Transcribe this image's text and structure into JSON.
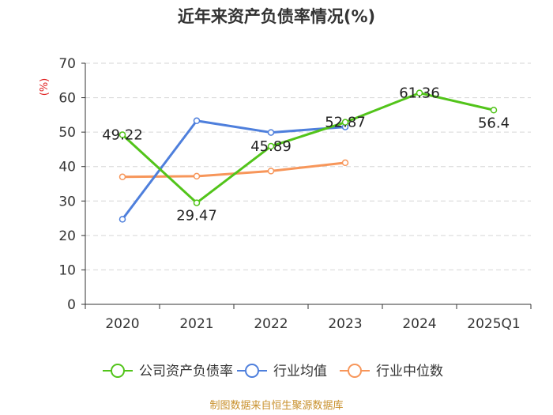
{
  "chart_data": {
    "type": "line",
    "title": "近年来资产负债率情况(%)",
    "ylabel": "(%)",
    "xlabel": "",
    "categories": [
      "2020",
      "2021",
      "2022",
      "2023",
      "2024",
      "2025Q1"
    ],
    "ylim": [
      0,
      70
    ],
    "yticks": [
      0,
      10,
      20,
      30,
      40,
      50,
      60,
      70
    ],
    "grid": true,
    "legend_position": "bottom",
    "series": [
      {
        "name": "公司资产负债率",
        "color": "#52c41a",
        "values": [
          49.22,
          29.47,
          45.89,
          52.87,
          61.36,
          56.4
        ],
        "labels": [
          "49.22",
          "29.47",
          "45.89",
          "52.87",
          "61.36",
          "56.4"
        ]
      },
      {
        "name": "行业均值",
        "color": "#4e7fdc",
        "values": [
          24.7,
          53.3,
          49.9,
          51.5,
          null,
          null
        ]
      },
      {
        "name": "行业中位数",
        "color": "#f7965a",
        "values": [
          37.0,
          37.2,
          38.7,
          41.1,
          null,
          null
        ]
      }
    ]
  },
  "source": "制图数据来自恒生聚源数据库"
}
